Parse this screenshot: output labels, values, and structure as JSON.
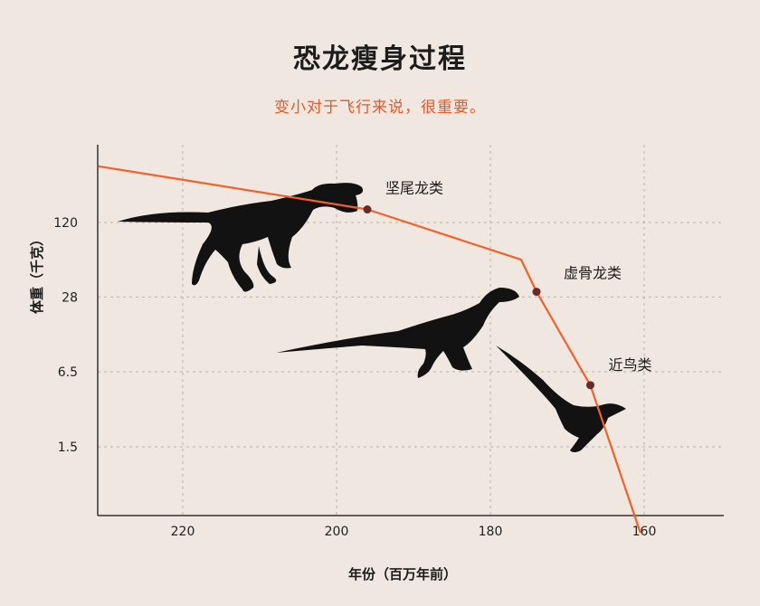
{
  "chart_data": {
    "type": "line",
    "title": "恐龙瘦身过程",
    "subtitle": "变小对于飞行来说，很重要。",
    "xlabel": "年份（百万年前）",
    "ylabel": "体重（千克）",
    "x_axis": {
      "reversed": true,
      "range": [
        232,
        153
      ],
      "ticks": [
        220,
        200,
        180,
        160
      ]
    },
    "y_axis": {
      "scale": "log",
      "tick_labels": [
        "120",
        "28",
        "6.5",
        "1.5"
      ],
      "tick_values": [
        120,
        28,
        6.5,
        1.5
      ]
    },
    "grid": true,
    "series": [
      {
        "points": [
          {
            "x": 231,
            "y": 360
          },
          {
            "x": 196,
            "y": 155
          },
          {
            "x": 176,
            "y": 58
          },
          {
            "x": 174,
            "y": 31
          },
          {
            "x": 167,
            "y": 5
          },
          {
            "x": 160.5,
            "y": 0.28
          }
        ],
        "color": "#f0622a"
      }
    ],
    "annotations": [
      {
        "label": "坚尾龙类",
        "x": 196,
        "y": 155
      },
      {
        "label": "虚骨龙类",
        "x": 174,
        "y": 31
      },
      {
        "label": "近鸟类",
        "x": 167,
        "y": 5
      }
    ],
    "silhouettes": [
      "theropod-silhouette-icon",
      "coelurosaur-silhouette-icon",
      "paraves-silhouette-icon"
    ],
    "line_color": "#f0622a",
    "marker_color": "#6b2a2a",
    "silhouette_color": "#121212"
  }
}
